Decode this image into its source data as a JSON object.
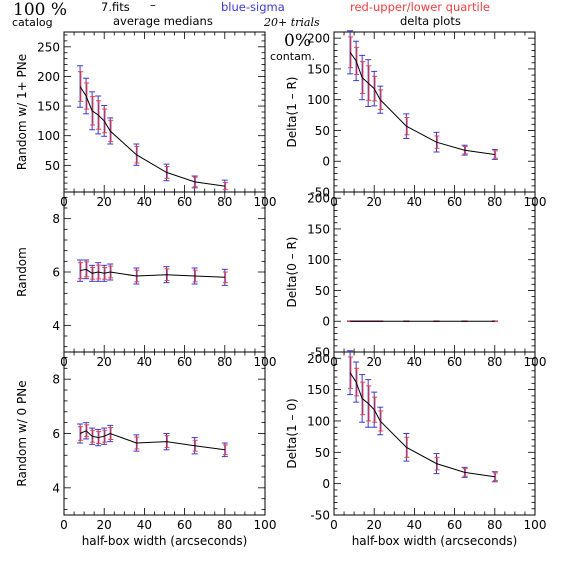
{
  "header": {
    "pct": "100 %",
    "catalog": "catalog",
    "fits": "7.fits",
    "dash": "–",
    "blue_label": "blue-sigma",
    "red_label": "red-upper/lower quartile",
    "avg_medians": "average medians",
    "trials": "20+ trials",
    "delta_plots": "delta plots",
    "contam_pct": "0%",
    "contam": "contam."
  },
  "colors": {
    "line": "#000000",
    "sigma": "#3a3ad0",
    "quartile": "#f04040"
  },
  "chart_data": [
    {
      "type": "line",
      "id": "p1",
      "ylabel": "Random w/ 1+ PNe",
      "xlim": [
        0,
        100
      ],
      "ylim": [
        5,
        275
      ],
      "yticks": [
        50,
        100,
        150,
        200,
        250
      ],
      "xticks": [
        0,
        20,
        40,
        60,
        80,
        100
      ],
      "x": [
        8,
        11,
        14,
        17,
        20,
        23,
        36,
        51,
        65,
        80
      ],
      "y": [
        183,
        167,
        142,
        135,
        125,
        108,
        68,
        38,
        22,
        15
      ],
      "sigma": [
        35,
        30,
        32,
        32,
        26,
        22,
        18,
        14,
        10,
        10
      ],
      "quartile": [
        25,
        22,
        24,
        24,
        20,
        18,
        14,
        10,
        8,
        6
      ]
    },
    {
      "type": "line",
      "id": "p2",
      "ylabel": "Delta(1 – R)",
      "xlim": [
        0,
        100
      ],
      "ylim": [
        -50,
        210
      ],
      "yticks": [
        -50,
        0,
        50,
        100,
        150,
        200
      ],
      "xticks": [
        0,
        20,
        40,
        60,
        80,
        100
      ],
      "x": [
        8,
        11,
        14,
        17,
        20,
        23,
        36,
        51,
        65,
        80
      ],
      "y": [
        177,
        163,
        136,
        127,
        118,
        100,
        57,
        31,
        18,
        11
      ],
      "sigma": [
        35,
        32,
        36,
        38,
        28,
        22,
        20,
        16,
        8,
        8
      ],
      "quartile": [
        25,
        22,
        26,
        28,
        20,
        16,
        14,
        10,
        6,
        6
      ]
    },
    {
      "type": "line",
      "id": "p3",
      "ylabel": "Random",
      "xlim": [
        0,
        100
      ],
      "ylim": [
        3,
        9
      ],
      "yticks": [
        4,
        6,
        8
      ],
      "xticks": [
        0,
        20,
        40,
        60,
        80,
        100
      ],
      "x": [
        8,
        11,
        14,
        17,
        20,
        23,
        36,
        51,
        65,
        80
      ],
      "y": [
        6.05,
        6.1,
        5.95,
        6.0,
        5.95,
        6.0,
        5.85,
        5.9,
        5.85,
        5.8
      ],
      "sigma": [
        0.4,
        0.35,
        0.3,
        0.35,
        0.3,
        0.3,
        0.3,
        0.3,
        0.3,
        0.3
      ],
      "quartile": [
        0.3,
        0.28,
        0.22,
        0.26,
        0.22,
        0.22,
        0.22,
        0.22,
        0.22,
        0.2
      ]
    },
    {
      "type": "line",
      "id": "p4",
      "ylabel": "Delta(0 – R)",
      "xlim": [
        0,
        100
      ],
      "ylim": [
        -50,
        210
      ],
      "yticks": [
        -50,
        0,
        50,
        100,
        150,
        200
      ],
      "xticks": [
        0,
        20,
        40,
        60,
        80,
        100
      ],
      "x": [
        8,
        11,
        14,
        17,
        20,
        23,
        36,
        51,
        65,
        80
      ],
      "y": [
        0,
        0,
        0,
        0,
        0,
        0,
        0,
        0,
        0,
        0
      ],
      "sigma": [
        0.5,
        0.5,
        0.5,
        0.5,
        0.5,
        0.5,
        0.5,
        0.5,
        0.5,
        0.5
      ],
      "quartile": [
        0.3,
        0.3,
        0.3,
        0.3,
        0.3,
        0.3,
        0.3,
        0.3,
        0.3,
        0.3
      ]
    },
    {
      "type": "line",
      "id": "p5",
      "ylabel": "Random w/ 0 PNe",
      "xlabel": "half-box width (arcseconds)",
      "xlim": [
        0,
        100
      ],
      "ylim": [
        3,
        9
      ],
      "yticks": [
        4,
        6,
        8
      ],
      "xticks": [
        0,
        20,
        40,
        60,
        80,
        100
      ],
      "x": [
        8,
        11,
        14,
        17,
        20,
        23,
        36,
        51,
        65,
        80
      ],
      "y": [
        6.0,
        6.1,
        5.9,
        5.85,
        5.9,
        6.0,
        5.65,
        5.7,
        5.55,
        5.4
      ],
      "sigma": [
        0.35,
        0.3,
        0.3,
        0.3,
        0.3,
        0.3,
        0.3,
        0.3,
        0.3,
        0.25
      ],
      "quartile": [
        0.25,
        0.22,
        0.22,
        0.22,
        0.22,
        0.22,
        0.22,
        0.22,
        0.2,
        0.18
      ]
    },
    {
      "type": "line",
      "id": "p6",
      "ylabel": "Delta(1 – 0)",
      "xlabel": "half-box width (arcseconds)",
      "xlim": [
        0,
        100
      ],
      "ylim": [
        -50,
        210
      ],
      "yticks": [
        -50,
        0,
        50,
        100,
        150,
        200
      ],
      "xticks": [
        0,
        20,
        40,
        60,
        80,
        100
      ],
      "x": [
        8,
        11,
        14,
        17,
        20,
        23,
        36,
        51,
        65,
        80
      ],
      "y": [
        177,
        162,
        136,
        128,
        118,
        100,
        58,
        32,
        18,
        11
      ],
      "sigma": [
        35,
        32,
        38,
        38,
        28,
        22,
        22,
        16,
        8,
        8
      ],
      "quartile": [
        25,
        22,
        26,
        28,
        20,
        16,
        16,
        10,
        6,
        6
      ]
    }
  ]
}
